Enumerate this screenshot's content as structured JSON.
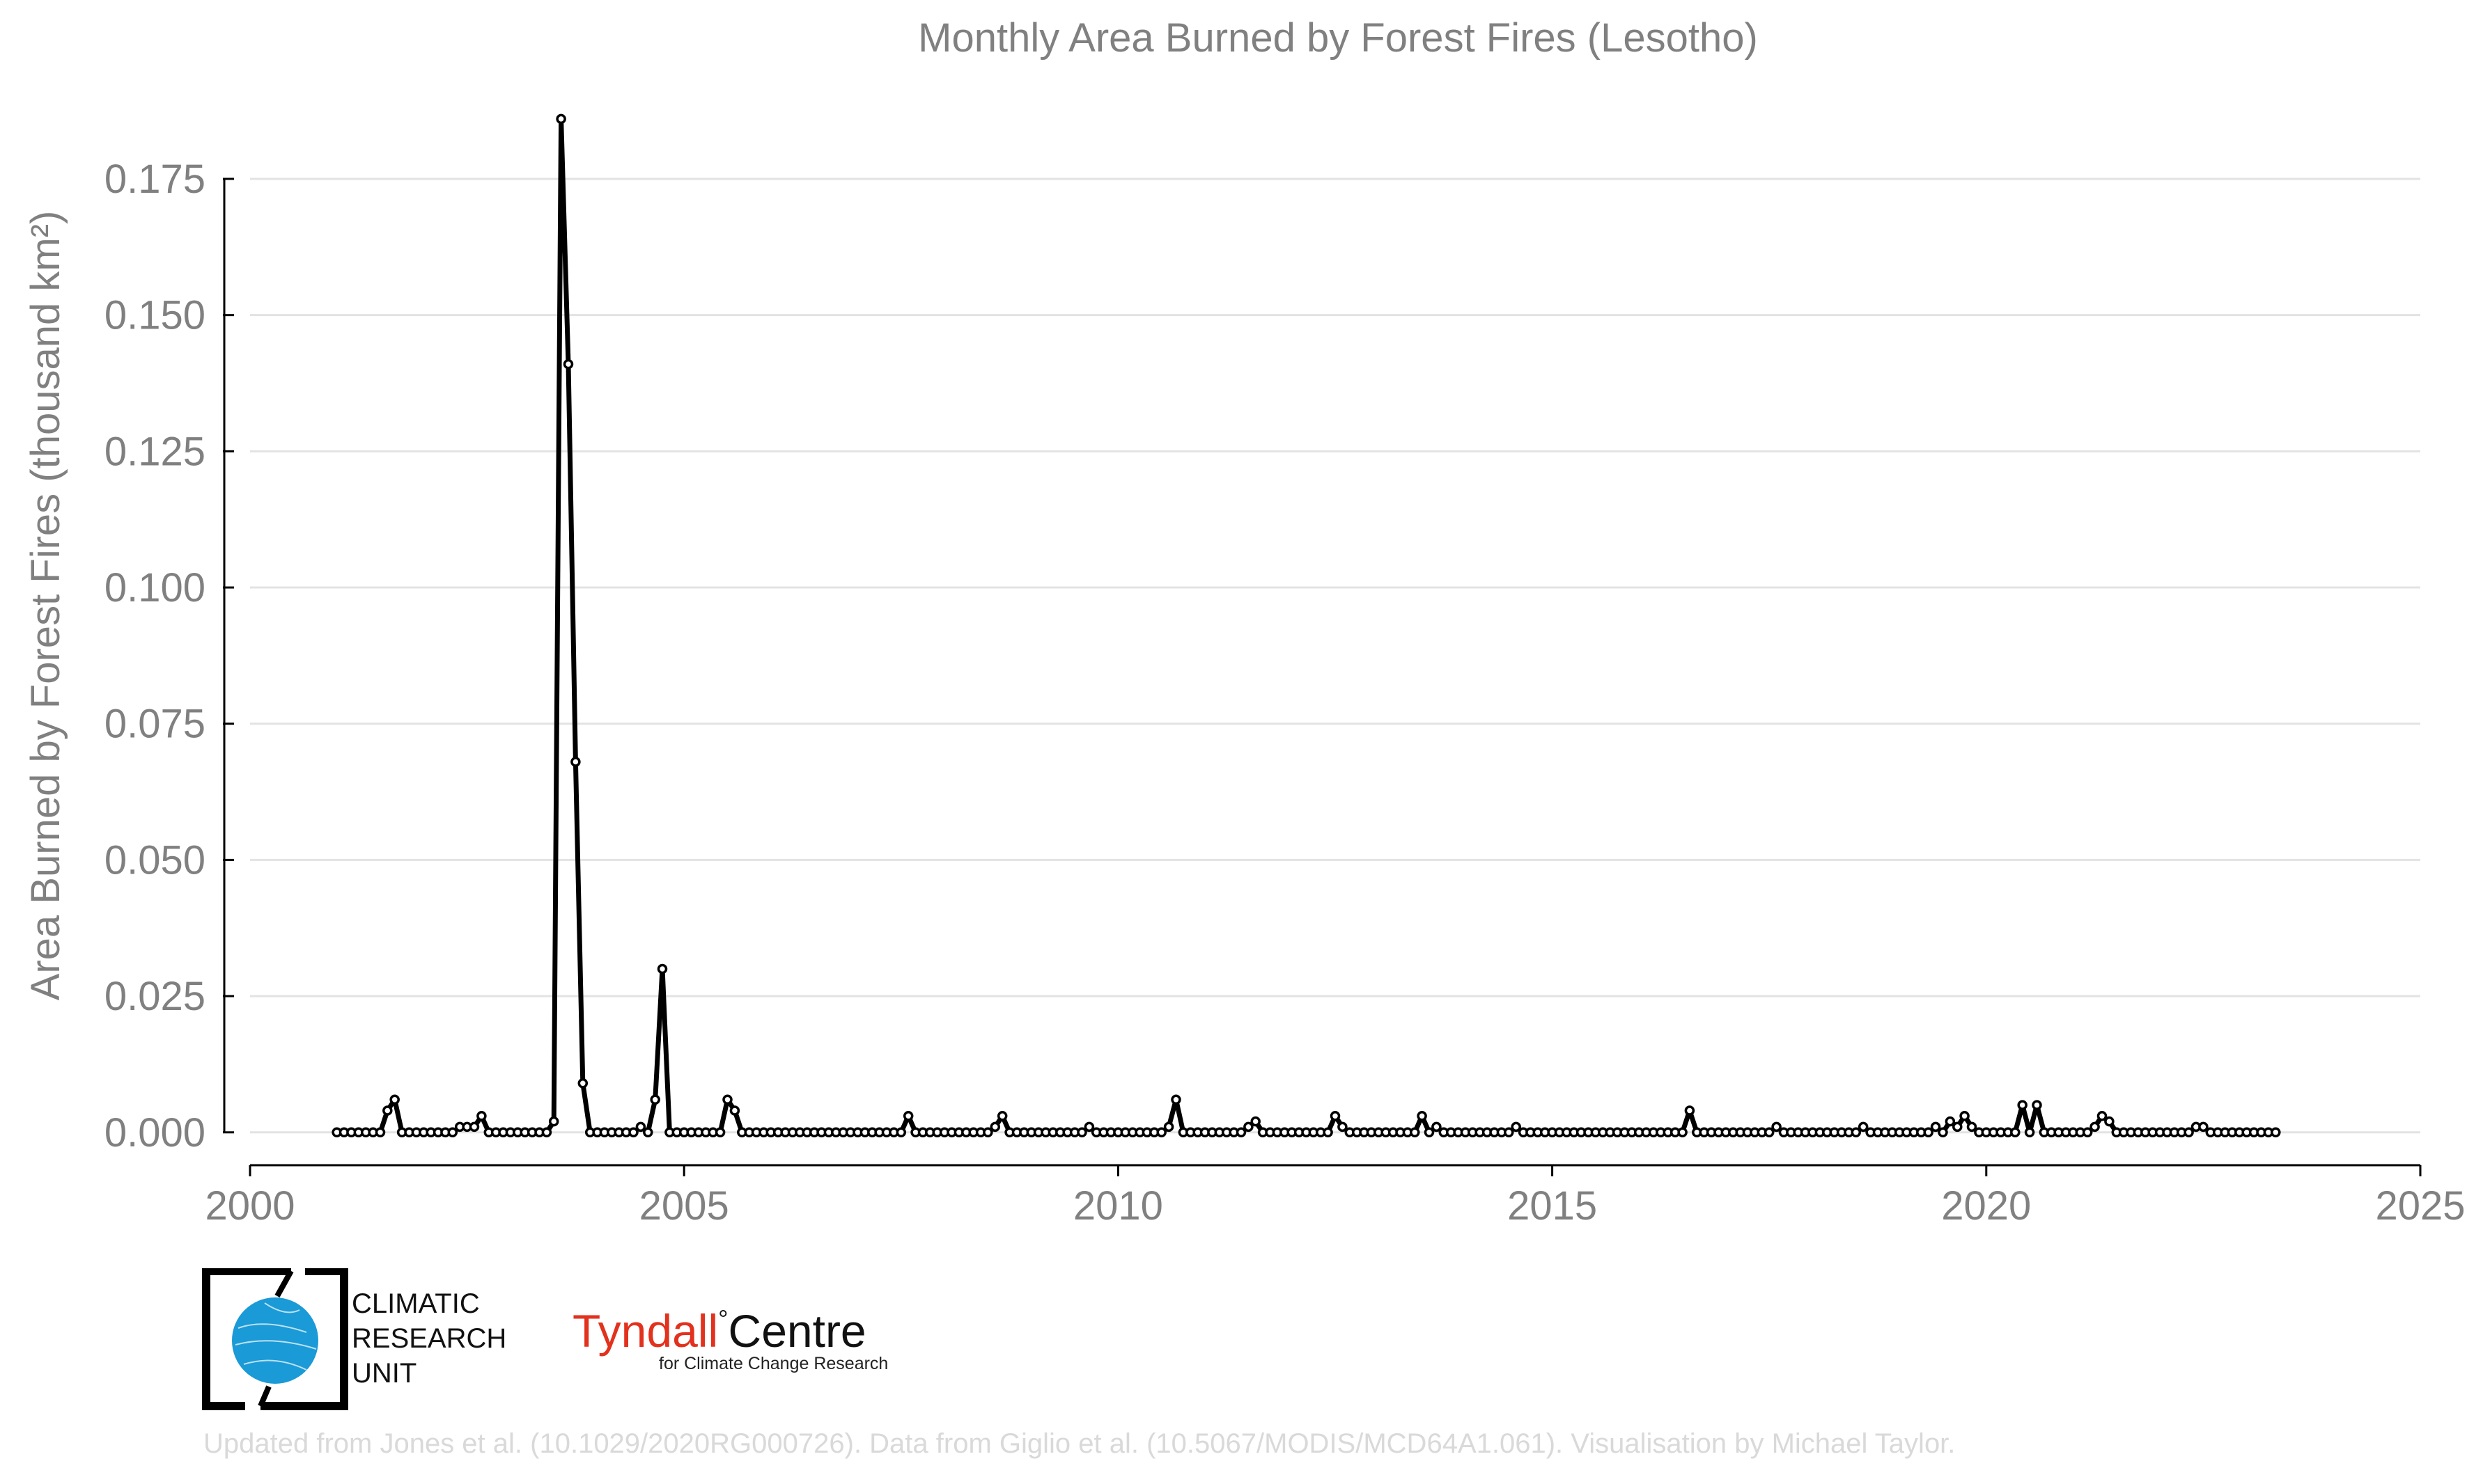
{
  "chart_data": {
    "type": "line",
    "title": "Monthly Area Burned by Forest Fires (Lesotho)",
    "ylabel": "Area Burned by Forest Fires (thousand km²)",
    "xlabel": "",
    "xlim": [
      2000,
      2025
    ],
    "ylim": [
      -0.0068,
      0.1925
    ],
    "x_ticks": [
      2000,
      2005,
      2010,
      2015,
      2020,
      2025
    ],
    "x_tick_labels": [
      "2000",
      "2005",
      "2010",
      "2015",
      "2020",
      "2025"
    ],
    "y_ticks": [
      0,
      0.025,
      0.05,
      0.075,
      0.1,
      0.125,
      0.15,
      0.175
    ],
    "y_tick_labels": [
      "0.000",
      "0.025",
      "0.050",
      "0.075",
      "0.100",
      "0.125",
      "0.150",
      "0.175"
    ],
    "grid": "horizontal",
    "legend": "none",
    "series_color": "#000000",
    "start": "2001-01",
    "series": [
      {
        "values": [
          0,
          0,
          0,
          0,
          0,
          0,
          0,
          0.004,
          0.006,
          0,
          0,
          0,
          0,
          0,
          0,
          0,
          0,
          0.001,
          0.001,
          0.001,
          0.003,
          0,
          0,
          0,
          0,
          0,
          0,
          0,
          0,
          0,
          0.002,
          0.186,
          0.141,
          0.068,
          0.009,
          0,
          0,
          0,
          0,
          0,
          0,
          0,
          0.001,
          0,
          0.006,
          0.03,
          0,
          0,
          0,
          0,
          0,
          0,
          0,
          0,
          0.006,
          0.004,
          0,
          0,
          0,
          0,
          0,
          0,
          0,
          0,
          0,
          0,
          0,
          0,
          0,
          0,
          0,
          0,
          0,
          0,
          0,
          0,
          0,
          0,
          0,
          0.003,
          0,
          0,
          0,
          0,
          0,
          0,
          0,
          0,
          0,
          0,
          0,
          0.001,
          0.003,
          0,
          0,
          0,
          0,
          0,
          0,
          0,
          0,
          0,
          0,
          0,
          0.001,
          0,
          0,
          0,
          0,
          0,
          0,
          0,
          0,
          0,
          0,
          0.001,
          0.006,
          0,
          0,
          0,
          0,
          0,
          0,
          0,
          0,
          0,
          0.001,
          0.002,
          0,
          0,
          0,
          0,
          0,
          0,
          0,
          0,
          0,
          0,
          0.003,
          0.001,
          0,
          0,
          0,
          0,
          0,
          0,
          0,
          0,
          0,
          0,
          0.003,
          0,
          0.001,
          0,
          0,
          0,
          0,
          0,
          0,
          0,
          0,
          0,
          0,
          0.001,
          0,
          0,
          0,
          0,
          0,
          0,
          0,
          0,
          0,
          0,
          0,
          0,
          0,
          0,
          0,
          0,
          0,
          0,
          0,
          0,
          0,
          0,
          0,
          0.004,
          0,
          0,
          0,
          0,
          0,
          0,
          0,
          0,
          0,
          0,
          0,
          0.001,
          0,
          0,
          0,
          0,
          0,
          0,
          0,
          0,
          0,
          0,
          0,
          0.001,
          0,
          0,
          0,
          0,
          0,
          0,
          0,
          0,
          0,
          0.001,
          0,
          0.002,
          0.001,
          0.003,
          0.001,
          0,
          0,
          0,
          0,
          0,
          0,
          0.005,
          0,
          0.005,
          0,
          0,
          0,
          0,
          0,
          0,
          0,
          0.001,
          0.003,
          0.002,
          0,
          0,
          0,
          0,
          0,
          0,
          0,
          0,
          0,
          0,
          0,
          0.001,
          0.001,
          0,
          0,
          0,
          0,
          0,
          0,
          0,
          0,
          0,
          0
        ]
      }
    ]
  },
  "logos": {
    "cru_line1": "CLIMATIC",
    "cru_line2": "RESEARCH",
    "cru_line3": "UNIT",
    "tyndall_red": "Tyndall",
    "tyndall_degree": "°",
    "tyndall_black": "Centre",
    "tyndall_sub": "for Climate Change Research",
    "cru_globe_color": "#1a9ad6",
    "tyndall_color": "#e2311d"
  },
  "caption": "Updated from Jones et al. (10.1029/2020RG000726). Data from Giglio et al. (10.5067/MODIS/MCD64A1.061). Visualisation by Michael Taylor."
}
